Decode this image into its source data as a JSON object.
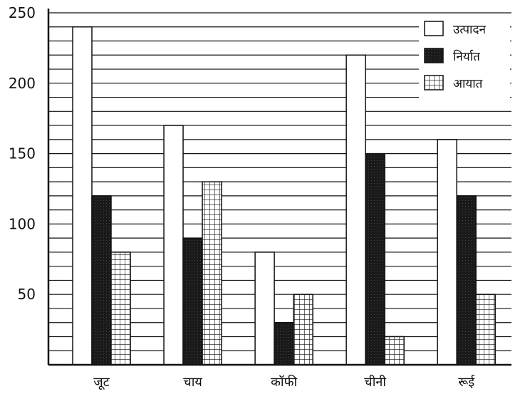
{
  "chart_data": {
    "type": "bar",
    "categories": [
      "जूट",
      "चाय",
      "कॉफी",
      "चीनी",
      "रूई"
    ],
    "series": [
      {
        "name": "उत्पादन",
        "values": [
          240,
          170,
          80,
          220,
          160
        ],
        "pattern": "white"
      },
      {
        "name": "निर्यात",
        "values": [
          120,
          90,
          30,
          150,
          120
        ],
        "pattern": "black"
      },
      {
        "name": "आयात",
        "values": [
          80,
          130,
          50,
          20,
          50
        ],
        "pattern": "grid"
      }
    ],
    "y_ticks": [
      "50",
      "100",
      "150",
      "200",
      "250"
    ],
    "ylim": [
      0,
      250
    ],
    "grid": true,
    "legend_position": "top-right",
    "colors": {
      "ink": "#111111",
      "white_fill": "#ffffff",
      "black_fill": "#1a1a1a"
    }
  }
}
